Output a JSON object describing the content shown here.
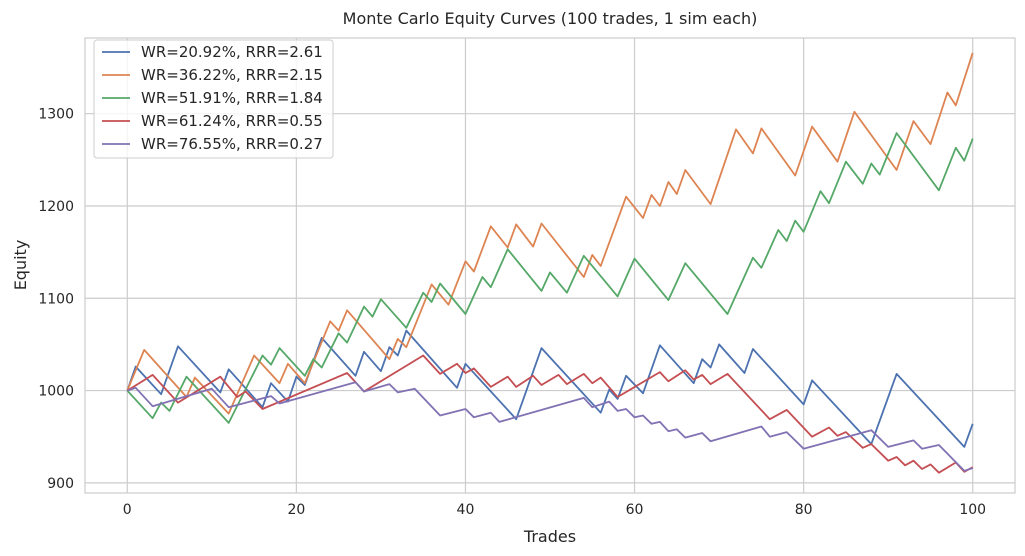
{
  "chart_data": {
    "type": "line",
    "title": "Monte Carlo Equity Curves (100 trades, 1 sim each)",
    "xlabel": "Trades",
    "ylabel": "Equity",
    "xlim": [
      -5,
      105
    ],
    "ylim": [
      889,
      1382
    ],
    "xticks": [
      0,
      20,
      40,
      60,
      80,
      100
    ],
    "yticks": [
      900,
      1000,
      1100,
      1200,
      1300
    ],
    "grid": true,
    "legend_position": "top-left",
    "series": [
      {
        "name": "WR=20.92%, RRR=2.61",
        "color": "#4c72b0",
        "points": [
          [
            0,
            1000
          ],
          [
            1,
            1026
          ],
          [
            4,
            996
          ],
          [
            6,
            1048
          ],
          [
            11,
            998
          ],
          [
            12,
            1023
          ],
          [
            16,
            982
          ],
          [
            17,
            1008
          ],
          [
            19,
            988
          ],
          [
            20,
            1015
          ],
          [
            21,
            1006
          ],
          [
            23,
            1057
          ],
          [
            27,
            1016
          ],
          [
            28,
            1042
          ],
          [
            30,
            1021
          ],
          [
            31,
            1047
          ],
          [
            32,
            1038
          ],
          [
            33,
            1065
          ],
          [
            39,
            1003
          ],
          [
            40,
            1029
          ],
          [
            46,
            969
          ],
          [
            49,
            1046
          ],
          [
            56,
            976
          ],
          [
            57,
            1001
          ],
          [
            58,
            991
          ],
          [
            59,
            1016
          ],
          [
            61,
            997
          ],
          [
            63,
            1049
          ],
          [
            67,
            1008
          ],
          [
            68,
            1034
          ],
          [
            69,
            1025
          ],
          [
            70,
            1050
          ],
          [
            73,
            1019
          ],
          [
            74,
            1045
          ],
          [
            80,
            985
          ],
          [
            81,
            1011
          ],
          [
            88,
            942
          ],
          [
            91,
            1018
          ],
          [
            99,
            939
          ],
          [
            100,
            964
          ]
        ]
      },
      {
        "name": "WR=36.22%, RRR=2.15",
        "color": "#dd8452",
        "points": [
          [
            0,
            1000
          ],
          [
            2,
            1044
          ],
          [
            7,
            993
          ],
          [
            8,
            1014
          ],
          [
            12,
            975
          ],
          [
            15,
            1038
          ],
          [
            18,
            1008
          ],
          [
            19,
            1029
          ],
          [
            21,
            1008
          ],
          [
            24,
            1075
          ],
          [
            25,
            1065
          ],
          [
            26,
            1087
          ],
          [
            31,
            1034
          ],
          [
            32,
            1056
          ],
          [
            33,
            1047
          ],
          [
            36,
            1115
          ],
          [
            38,
            1093
          ],
          [
            40,
            1140
          ],
          [
            41,
            1129
          ],
          [
            43,
            1178
          ],
          [
            45,
            1155
          ],
          [
            46,
            1180
          ],
          [
            48,
            1156
          ],
          [
            49,
            1181
          ],
          [
            54,
            1123
          ],
          [
            55,
            1147
          ],
          [
            56,
            1135
          ],
          [
            59,
            1210
          ],
          [
            61,
            1187
          ],
          [
            62,
            1212
          ],
          [
            63,
            1200
          ],
          [
            64,
            1226
          ],
          [
            65,
            1213
          ],
          [
            66,
            1239
          ],
          [
            69,
            1202
          ],
          [
            72,
            1283
          ],
          [
            74,
            1257
          ],
          [
            75,
            1284
          ],
          [
            79,
            1233
          ],
          [
            81,
            1286
          ],
          [
            84,
            1248
          ],
          [
            86,
            1302
          ],
          [
            91,
            1239
          ],
          [
            93,
            1292
          ],
          [
            95,
            1267
          ],
          [
            97,
            1323
          ],
          [
            98,
            1309
          ],
          [
            100,
            1366
          ]
        ]
      },
      {
        "name": "WR=51.91%, RRR=1.84",
        "color": "#55a868",
        "points": [
          [
            0,
            1000
          ],
          [
            3,
            970
          ],
          [
            4,
            987
          ],
          [
            5,
            978
          ],
          [
            7,
            1015
          ],
          [
            12,
            965
          ],
          [
            16,
            1038
          ],
          [
            17,
            1028
          ],
          [
            18,
            1046
          ],
          [
            21,
            1016
          ],
          [
            22,
            1034
          ],
          [
            23,
            1025
          ],
          [
            25,
            1062
          ],
          [
            26,
            1052
          ],
          [
            28,
            1091
          ],
          [
            29,
            1080
          ],
          [
            30,
            1099
          ],
          [
            33,
            1068
          ],
          [
            35,
            1106
          ],
          [
            36,
            1096
          ],
          [
            37,
            1116
          ],
          [
            40,
            1083
          ],
          [
            42,
            1123
          ],
          [
            43,
            1112
          ],
          [
            45,
            1153
          ],
          [
            49,
            1108
          ],
          [
            50,
            1128
          ],
          [
            52,
            1106
          ],
          [
            54,
            1146
          ],
          [
            58,
            1102
          ],
          [
            60,
            1143
          ],
          [
            64,
            1098
          ],
          [
            66,
            1138
          ],
          [
            71,
            1083
          ],
          [
            74,
            1144
          ],
          [
            75,
            1133
          ],
          [
            77,
            1174
          ],
          [
            78,
            1162
          ],
          [
            79,
            1184
          ],
          [
            80,
            1172
          ],
          [
            82,
            1216
          ],
          [
            83,
            1203
          ],
          [
            85,
            1248
          ],
          [
            87,
            1224
          ],
          [
            88,
            1246
          ],
          [
            89,
            1234
          ],
          [
            91,
            1279
          ],
          [
            96,
            1217
          ],
          [
            98,
            1263
          ],
          [
            99,
            1249
          ],
          [
            100,
            1273
          ]
        ]
      },
      {
        "name": "WR=61.24%, RRR=0.55",
        "color": "#c44e52",
        "points": [
          [
            0,
            1000
          ],
          [
            3,
            1017
          ],
          [
            6,
            987
          ],
          [
            11,
            1015
          ],
          [
            13,
            993
          ],
          [
            14,
            999
          ],
          [
            16,
            980
          ],
          [
            26,
            1019
          ],
          [
            28,
            999
          ],
          [
            35,
            1038
          ],
          [
            37,
            1018
          ],
          [
            39,
            1029
          ],
          [
            40,
            1019
          ],
          [
            41,
            1024
          ],
          [
            43,
            1004
          ],
          [
            45,
            1015
          ],
          [
            46,
            1004
          ],
          [
            48,
            1016
          ],
          [
            49,
            1006
          ],
          [
            51,
            1017
          ],
          [
            52,
            1007
          ],
          [
            54,
            1018
          ],
          [
            55,
            1008
          ],
          [
            56,
            1014
          ],
          [
            58,
            993
          ],
          [
            63,
            1020
          ],
          [
            64,
            1010
          ],
          [
            66,
            1022
          ],
          [
            67,
            1012
          ],
          [
            68,
            1017
          ],
          [
            69,
            1007
          ],
          [
            71,
            1018
          ],
          [
            76,
            969
          ],
          [
            78,
            979
          ],
          [
            81,
            950
          ],
          [
            83,
            960
          ],
          [
            84,
            951
          ],
          [
            85,
            955
          ],
          [
            87,
            938
          ],
          [
            88,
            942
          ],
          [
            90,
            924
          ],
          [
            91,
            928
          ],
          [
            92,
            919
          ],
          [
            93,
            924
          ],
          [
            94,
            915
          ],
          [
            95,
            920
          ],
          [
            96,
            911
          ],
          [
            98,
            922
          ],
          [
            99,
            912
          ],
          [
            100,
            917
          ]
        ]
      },
      {
        "name": "WR=76.55%, RRR=0.27",
        "color": "#8172b3",
        "points": [
          [
            0,
            1000
          ],
          [
            1,
            1003
          ],
          [
            3,
            983
          ],
          [
            10,
            1002
          ],
          [
            12,
            982
          ],
          [
            17,
            994
          ],
          [
            18,
            986
          ],
          [
            27,
            1009
          ],
          [
            28,
            999
          ],
          [
            31,
            1007
          ],
          [
            32,
            998
          ],
          [
            34,
            1002
          ],
          [
            37,
            973
          ],
          [
            40,
            980
          ],
          [
            41,
            971
          ],
          [
            43,
            976
          ],
          [
            44,
            966
          ],
          [
            54,
            992
          ],
          [
            55,
            982
          ],
          [
            57,
            988
          ],
          [
            58,
            978
          ],
          [
            59,
            980
          ],
          [
            60,
            971
          ],
          [
            61,
            973
          ],
          [
            62,
            964
          ],
          [
            63,
            966
          ],
          [
            64,
            956
          ],
          [
            65,
            958
          ],
          [
            66,
            949
          ],
          [
            68,
            954
          ],
          [
            69,
            945
          ],
          [
            75,
            961
          ],
          [
            76,
            950
          ],
          [
            78,
            955
          ],
          [
            80,
            937
          ],
          [
            88,
            957
          ],
          [
            90,
            939
          ],
          [
            93,
            946
          ],
          [
            94,
            937
          ],
          [
            96,
            941
          ],
          [
            99,
            913
          ],
          [
            100,
            916
          ]
        ]
      }
    ]
  }
}
